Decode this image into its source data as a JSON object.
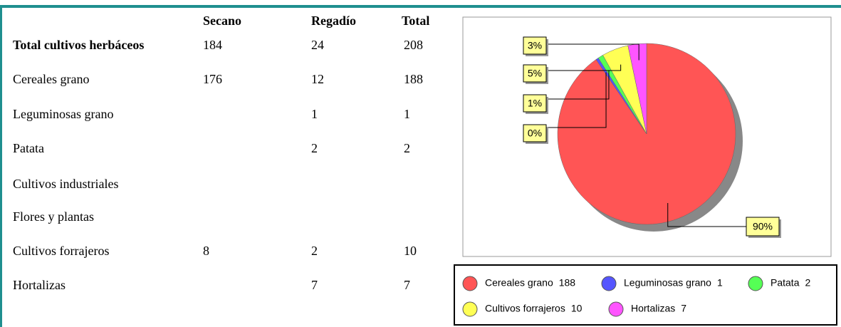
{
  "table": {
    "columns": [
      "Secano",
      "Regadío",
      "Total"
    ],
    "rows": [
      {
        "label": "Total cultivos herbáceos",
        "cells": [
          184,
          24,
          208
        ]
      },
      {
        "label": "Cereales grano",
        "cells": [
          176,
          12,
          188
        ]
      },
      {
        "label": "Leguminosas grano",
        "cells": [
          null,
          1,
          1
        ]
      },
      {
        "label": "Patata",
        "cells": [
          null,
          2,
          2
        ]
      },
      {
        "label": "Cultivos industriales",
        "cells": [
          null,
          null,
          null
        ]
      },
      {
        "label": "Flores y plantas",
        "cells": [
          null,
          null,
          null
        ]
      },
      {
        "label": "Cultivos forrajeros",
        "cells": [
          8,
          2,
          10
        ]
      },
      {
        "label": "Hortalizas",
        "cells": [
          null,
          7,
          7
        ]
      }
    ]
  },
  "chart_data": {
    "type": "pie",
    "categories": [
      "Cereales grano",
      "Leguminosas grano",
      "Patata",
      "Cultivos forrajeros",
      "Hortalizas"
    ],
    "values": [
      188,
      1,
      2,
      10,
      7
    ],
    "colors": [
      "#ff5555",
      "#5555ff",
      "#55ff55",
      "#ffff55",
      "#ff55ff"
    ],
    "percentages": [
      90,
      0,
      1,
      5,
      3
    ],
    "percentage_labels": [
      "90%",
      "0%",
      "1%",
      "5%",
      "3%"
    ]
  }
}
